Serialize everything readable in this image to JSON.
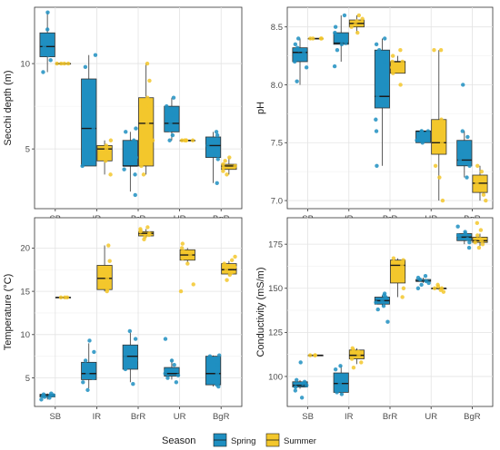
{
  "legend": {
    "title": "Season",
    "items": [
      {
        "label": "Spring",
        "color": "#1F8FC1"
      },
      {
        "label": "Summer",
        "color": "#F3C72C"
      }
    ]
  },
  "chart_data": [
    {
      "type": "box",
      "categories": [
        "SB",
        "IR",
        "BrR",
        "UR",
        "BgR"
      ],
      "ylabel": "Secchi depth (m)",
      "ylim": [
        1.5,
        13.3
      ],
      "yticks": [
        5,
        10
      ],
      "series": [
        {
          "name": "Spring",
          "boxes": [
            {
              "min": 9.5,
              "q1": 10.4,
              "median": 11.0,
              "q3": 11.8,
              "max": 13.0,
              "points": [
                9.5,
                10.2,
                10.5,
                10.8,
                11.0,
                11.2,
                11.5,
                12.0,
                13.0
              ]
            },
            {
              "min": 4.0,
              "q1": 4.0,
              "median": 6.2,
              "q3": 9.1,
              "max": 10.5,
              "points": [
                4.0,
                4.2,
                4.8,
                5.5,
                6.2,
                7.0,
                8.2,
                9.8,
                10.5
              ]
            },
            {
              "min": 2.5,
              "q1": 4.0,
              "median": 4.0,
              "q3": 5.5,
              "max": 6.0,
              "points": [
                2.3,
                3.5,
                3.8,
                4.2,
                4.5,
                5.0,
                5.5,
                6.0,
                6.2
              ]
            },
            {
              "min": 5.5,
              "q1": 6.0,
              "median": 6.5,
              "q3": 7.5,
              "max": 8.0,
              "points": [
                5.5,
                5.8,
                6.1,
                6.5,
                7.0,
                7.5,
                8.0
              ]
            },
            {
              "min": 3.0,
              "q1": 4.5,
              "median": 5.2,
              "q3": 5.7,
              "max": 6.0,
              "points": [
                3.0,
                4.4,
                4.8,
                5.2,
                5.5,
                5.8,
                6.0
              ]
            }
          ]
        },
        {
          "name": "Summer",
          "boxes": [
            {
              "min": 10.0,
              "q1": 10.0,
              "median": 10.0,
              "q3": 10.0,
              "max": 10.0,
              "points": [
                10.0,
                10.0,
                10.0,
                10.0
              ]
            },
            {
              "min": 3.5,
              "q1": 4.3,
              "median": 5.0,
              "q3": 5.2,
              "max": 5.5,
              "points": [
                3.5,
                4.3,
                4.8,
                5.0,
                5.2,
                5.5
              ]
            },
            {
              "min": 3.5,
              "q1": 4.0,
              "median": 6.5,
              "q3": 8.0,
              "max": 10.0,
              "points": [
                3.5,
                4.0,
                5.5,
                6.5,
                7.5,
                8.0,
                9.0,
                10.0
              ]
            },
            {
              "min": 5.5,
              "q1": 5.5,
              "median": 5.5,
              "q3": 5.5,
              "max": 5.5,
              "points": [
                5.5,
                5.5,
                5.5,
                5.5,
                5.5
              ]
            },
            {
              "min": 3.5,
              "q1": 3.8,
              "median": 4.0,
              "q3": 4.1,
              "max": 4.5,
              "points": [
                3.5,
                3.7,
                3.9,
                4.0,
                4.1,
                4.3,
                4.5
              ]
            }
          ]
        }
      ]
    },
    {
      "type": "box",
      "categories": [
        "SB",
        "IR",
        "BrR",
        "UR",
        "BgR"
      ],
      "ylabel": "pH",
      "ylim": [
        6.93,
        8.67
      ],
      "yticks": [
        7.0,
        7.5,
        8.0,
        8.5
      ],
      "series": [
        {
          "name": "Spring",
          "boxes": [
            {
              "min": 8.0,
              "q1": 8.2,
              "median": 8.28,
              "q3": 8.32,
              "max": 8.4,
              "points": [
                8.03,
                8.15,
                8.2,
                8.25,
                8.28,
                8.3,
                8.32,
                8.35,
                8.4
              ]
            },
            {
              "min": 8.2,
              "q1": 8.35,
              "median": 8.36,
              "q3": 8.45,
              "max": 8.6,
              "points": [
                8.16,
                8.3,
                8.35,
                8.36,
                8.4,
                8.45,
                8.5,
                8.6
              ]
            },
            {
              "min": 7.3,
              "q1": 7.8,
              "median": 7.9,
              "q3": 8.3,
              "max": 8.4,
              "points": [
                7.3,
                7.6,
                7.7,
                7.85,
                7.9,
                8.0,
                8.2,
                8.3,
                8.35,
                8.4
              ]
            },
            {
              "min": 7.5,
              "q1": 7.5,
              "median": 7.6,
              "q3": 7.6,
              "max": 7.6,
              "points": [
                7.5,
                7.52,
                7.55,
                7.6,
                7.6,
                7.6
              ]
            },
            {
              "min": 7.2,
              "q1": 7.3,
              "median": 7.35,
              "q3": 7.52,
              "max": 7.6,
              "points": [
                7.2,
                7.3,
                7.35,
                7.4,
                7.5,
                7.55,
                7.6,
                8.0
              ]
            }
          ]
        },
        {
          "name": "Summer",
          "boxes": [
            {
              "min": 8.4,
              "q1": 8.4,
              "median": 8.4,
              "q3": 8.4,
              "max": 8.4,
              "points": [
                8.4,
                8.4,
                8.4,
                8.4
              ]
            },
            {
              "min": 8.45,
              "q1": 8.5,
              "median": 8.53,
              "q3": 8.56,
              "max": 8.6,
              "points": [
                8.45,
                8.5,
                8.52,
                8.55,
                8.57,
                8.6
              ]
            },
            {
              "min": 8.1,
              "q1": 8.1,
              "median": 8.2,
              "q3": 8.2,
              "max": 8.25,
              "points": [
                8.0,
                8.1,
                8.15,
                8.2,
                8.2,
                8.25,
                8.3
              ]
            },
            {
              "min": 7.0,
              "q1": 7.4,
              "median": 7.5,
              "q3": 7.7,
              "max": 8.3,
              "points": [
                7.0,
                7.2,
                7.3,
                7.5,
                7.6,
                7.7,
                8.3,
                8.3
              ]
            },
            {
              "min": 7.0,
              "q1": 7.07,
              "median": 7.15,
              "q3": 7.22,
              "max": 7.3,
              "points": [
                7.0,
                7.05,
                7.1,
                7.15,
                7.2,
                7.25,
                7.3
              ]
            }
          ]
        }
      ]
    },
    {
      "type": "box",
      "categories": [
        "SB",
        "IR",
        "BrR",
        "UR",
        "BgR"
      ],
      "ylabel": "Temperature (°C)",
      "ylim": [
        1.7,
        23.5
      ],
      "yticks": [
        5,
        10,
        15,
        20
      ],
      "series": [
        {
          "name": "Spring",
          "boxes": [
            {
              "min": 2.5,
              "q1": 2.8,
              "median": 3.0,
              "q3": 3.1,
              "max": 3.2,
              "points": [
                2.5,
                2.7,
                2.8,
                2.9,
                3.0,
                3.0,
                3.1,
                3.2
              ]
            },
            {
              "min": 3.8,
              "q1": 4.8,
              "median": 5.5,
              "q3": 6.8,
              "max": 9.0,
              "points": [
                3.6,
                4.5,
                5.0,
                5.5,
                6.0,
                7.0,
                8.0,
                9.3
              ]
            },
            {
              "min": 4.5,
              "q1": 6.0,
              "median": 7.5,
              "q3": 8.8,
              "max": 10.2,
              "points": [
                4.3,
                6.0,
                7.0,
                7.5,
                8.0,
                8.5,
                9.5,
                10.4
              ]
            },
            {
              "min": 4.8,
              "q1": 5.2,
              "median": 5.5,
              "q3": 6.2,
              "max": 7.2,
              "points": [
                4.5,
                5.0,
                5.3,
                5.5,
                5.8,
                6.5,
                7.0,
                9.5
              ]
            },
            {
              "min": 4.0,
              "q1": 4.2,
              "median": 5.5,
              "q3": 7.5,
              "max": 7.6,
              "points": [
                4.0,
                4.2,
                4.5,
                5.5,
                6.5,
                7.2,
                7.5,
                7.6
              ]
            }
          ]
        },
        {
          "name": "Summer",
          "boxes": [
            {
              "min": 14.3,
              "q1": 14.3,
              "median": 14.3,
              "q3": 14.3,
              "max": 14.3,
              "points": [
                14.3,
                14.3,
                14.3
              ]
            },
            {
              "min": 15.0,
              "q1": 15.2,
              "median": 16.5,
              "q3": 18.0,
              "max": 20.3,
              "points": [
                15.0,
                15.2,
                15.5,
                16.5,
                17.5,
                18.5,
                20.3
              ]
            },
            {
              "min": 21.2,
              "q1": 21.4,
              "median": 21.7,
              "q3": 21.9,
              "max": 22.2,
              "points": [
                21.0,
                21.3,
                21.5,
                21.7,
                21.9,
                22.0,
                22.2,
                22.4
              ]
            },
            {
              "min": 18.3,
              "q1": 18.6,
              "median": 19.2,
              "q3": 19.8,
              "max": 20.0,
              "points": [
                15.0,
                15.8,
                18.2,
                18.8,
                19.2,
                19.6,
                20.0,
                20.5
              ]
            },
            {
              "min": 16.8,
              "q1": 17.0,
              "median": 17.5,
              "q3": 18.2,
              "max": 18.5,
              "points": [
                16.3,
                16.9,
                17.2,
                17.5,
                17.8,
                18.2,
                18.6,
                19.0
              ]
            }
          ]
        }
      ]
    },
    {
      "type": "box",
      "categories": [
        "SB",
        "IR",
        "BrR",
        "UR",
        "BgR"
      ],
      "ylabel": "Conductivity (mS/m)",
      "ylim": [
        83,
        190
      ],
      "yticks": [
        100,
        125,
        150,
        175
      ],
      "series": [
        {
          "name": "Spring",
          "boxes": [
            {
              "min": 93,
              "q1": 94,
              "median": 95,
              "q3": 97,
              "max": 98,
              "points": [
                88,
                92,
                94,
                95,
                96,
                97,
                98,
                108
              ]
            },
            {
              "min": 90,
              "q1": 91,
              "median": 96,
              "q3": 102,
              "max": 106,
              "points": [
                90,
                91,
                93,
                96,
                100,
                104,
                106
              ]
            },
            {
              "min": 140,
              "q1": 141,
              "median": 143,
              "q3": 145,
              "max": 146,
              "points": [
                131,
                138,
                140,
                142,
                143,
                145,
                146,
                147
              ]
            },
            {
              "min": 153,
              "q1": 154,
              "median": 154,
              "q3": 155,
              "max": 156,
              "points": [
                150,
                152,
                153,
                154,
                155,
                156,
                157
              ]
            },
            {
              "min": 175,
              "q1": 177,
              "median": 179,
              "q3": 181,
              "max": 182,
              "points": [
                173,
                176,
                178,
                179,
                180,
                181,
                182,
                185
              ]
            }
          ]
        },
        {
          "name": "Summer",
          "boxes": [
            {
              "min": 112,
              "q1": 112,
              "median": 112,
              "q3": 112,
              "max": 112,
              "points": [
                112,
                112,
                112
              ]
            },
            {
              "min": 107,
              "q1": 110,
              "median": 112,
              "q3": 115,
              "max": 116,
              "points": [
                105,
                108,
                110,
                112,
                114,
                115,
                116
              ]
            },
            {
              "min": 145,
              "q1": 153,
              "median": 163,
              "q3": 166,
              "max": 167,
              "points": [
                145,
                150,
                155,
                163,
                165,
                166,
                167
              ]
            },
            {
              "min": 150,
              "q1": 150,
              "median": 150,
              "q3": 150,
              "max": 150,
              "points": [
                148,
                149,
                150,
                150,
                151,
                152
              ]
            },
            {
              "min": 174,
              "q1": 176,
              "median": 177,
              "q3": 179,
              "max": 181,
              "points": [
                173,
                175,
                176,
                177,
                178,
                180,
                183,
                187
              ]
            }
          ]
        }
      ]
    }
  ]
}
